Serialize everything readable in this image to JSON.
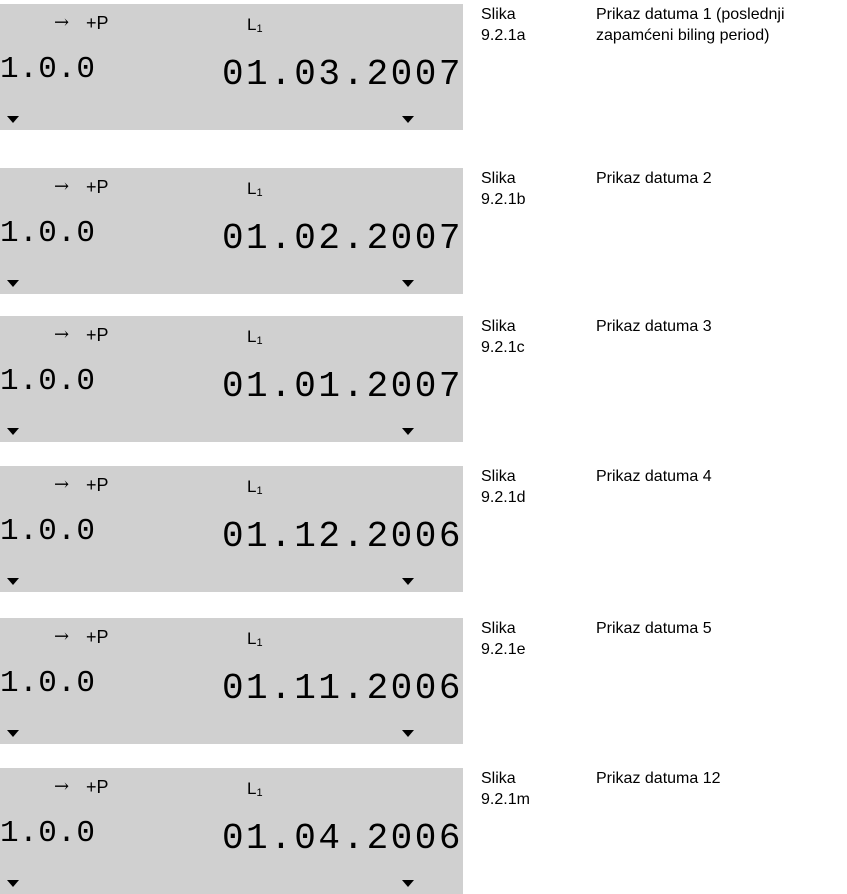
{
  "rows": [
    {
      "arrow": "→",
      "power": "+P",
      "phase_letter": "L",
      "phase_index": "1",
      "obis_code": "1.0.0",
      "date": "01.03.2007",
      "figure_label": "Slika",
      "figure_number": "9.2.1a",
      "description_line1": "Prikaz datuma 1 (poslednji",
      "description_line2": "zapamćeni biling period)"
    },
    {
      "arrow": "→",
      "power": "+P",
      "phase_letter": "L",
      "phase_index": "1",
      "obis_code": "1.0.0",
      "date": "01.02.2007",
      "figure_label": "Slika",
      "figure_number": "9.2.1b",
      "description_line1": "Prikaz datuma 2",
      "description_line2": ""
    },
    {
      "arrow": "→",
      "power": "+P",
      "phase_letter": "L",
      "phase_index": "1",
      "obis_code": "1.0.0",
      "date": "01.01.2007",
      "figure_label": "Slika",
      "figure_number": "9.2.1c",
      "description_line1": "Prikaz datuma 3",
      "description_line2": ""
    },
    {
      "arrow": "→",
      "power": "+P",
      "phase_letter": "L",
      "phase_index": "1",
      "obis_code": "1.0.0",
      "date": "01.12.2006",
      "figure_label": "Slika",
      "figure_number": "9.2.1d",
      "description_line1": "Prikaz datuma 4",
      "description_line2": ""
    },
    {
      "arrow": "→",
      "power": "+P",
      "phase_letter": "L",
      "phase_index": "1",
      "obis_code": "1.0.0",
      "date": "01.11.2006",
      "figure_label": "Slika",
      "figure_number": "9.2.1e",
      "description_line1": "Prikaz datuma 5",
      "description_line2": ""
    },
    {
      "arrow": "→",
      "power": "+P",
      "phase_letter": "L",
      "phase_index": "1",
      "obis_code": "1.0.0",
      "date": "01.04.2006",
      "figure_label": "Slika",
      "figure_number": "9.2.1m",
      "description_line1": "Prikaz datuma 12",
      "description_line2": ""
    }
  ],
  "colors": {
    "lcd_background": "#d0d0d0",
    "text": "#000000"
  }
}
